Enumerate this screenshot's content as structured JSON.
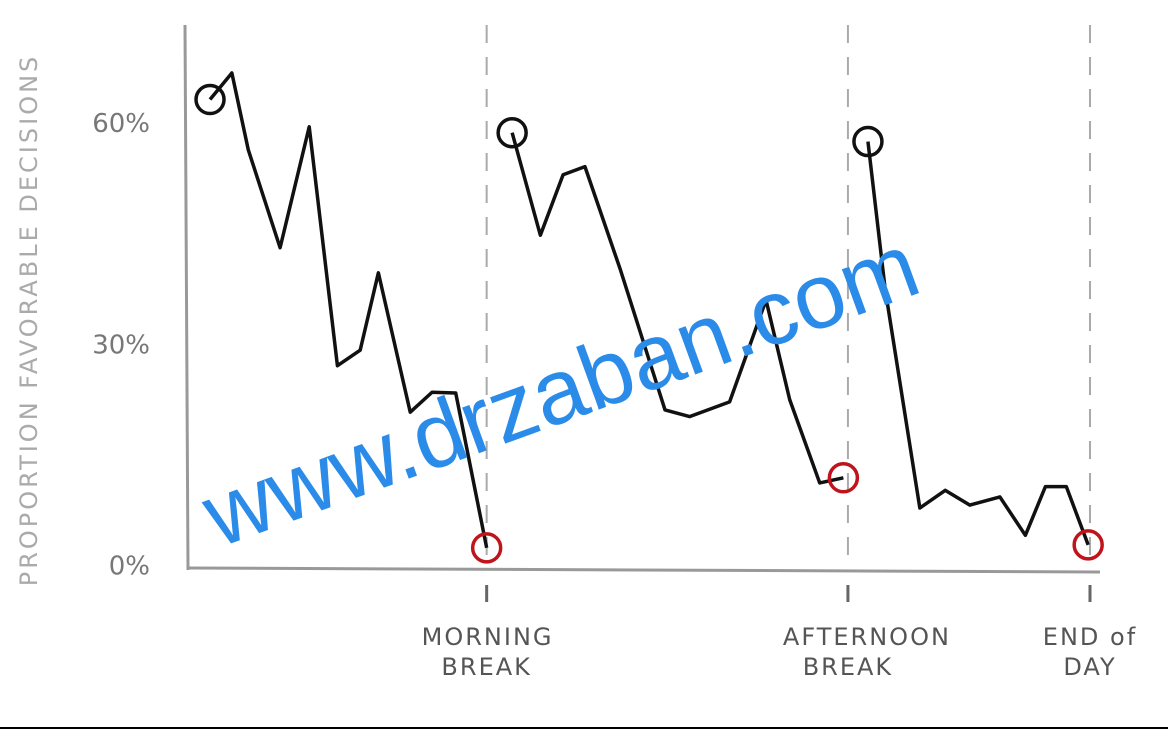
{
  "chart_data": {
    "type": "line",
    "ylabel": "PROPORTION FAVORABLE DECISIONS",
    "watermark": "www.drzaban.com",
    "xlim": [
      0,
      100
    ],
    "xticks": [
      {
        "value": 32.6,
        "label": "MORNING BREAK"
      },
      {
        "value": 72.3,
        "label": "AFTERNOON BREAK"
      },
      {
        "value": 98.9,
        "label": "END of DAY"
      }
    ],
    "ylim": [
      0,
      75
    ],
    "yticks": [
      {
        "value": 0,
        "label": "0%"
      },
      {
        "value": 30,
        "label": "30%"
      },
      {
        "value": 60,
        "label": "60%"
      }
    ],
    "start_marker_color": "#111111",
    "end_marker_color": "#c0141c",
    "series": [
      {
        "color": "#111111",
        "x": [
          2.2,
          4.6,
          6.4,
          9.9,
          13.1,
          16.2,
          18.7,
          20.7,
          24.2,
          26.6,
          29.2,
          32.6
        ],
        "values": [
          63.4,
          67.0,
          56.6,
          43.3,
          59.7,
          27.3,
          29.4,
          39.9,
          21.0,
          23.7,
          23.6,
          2.6
        ]
      },
      {
        "color": "#111111",
        "x": [
          35.4,
          38.5,
          41.0,
          43.4,
          47.3,
          52.2,
          54.9,
          59.3,
          63.3,
          65.9,
          69.2,
          71.8
        ],
        "values": [
          58.9,
          45.0,
          53.2,
          54.3,
          40.3,
          21.3,
          20.4,
          22.4,
          36.2,
          22.7,
          11.4,
          12.1
        ]
      },
      {
        "color": "#111111",
        "x": [
          74.5,
          76.4,
          80.2,
          83.0,
          85.7,
          89.0,
          91.8,
          94.0,
          96.3,
          98.7
        ],
        "values": [
          57.7,
          37.6,
          8.0,
          10.4,
          8.4,
          9.5,
          4.3,
          10.9,
          10.9,
          3.0
        ]
      }
    ]
  }
}
